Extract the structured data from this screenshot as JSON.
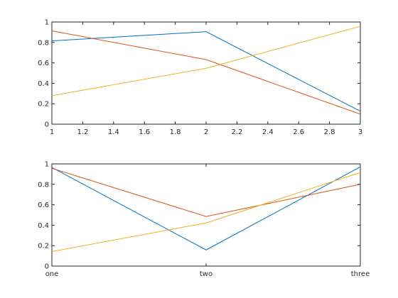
{
  "chart_data": [
    {
      "type": "line",
      "x": [
        1,
        2,
        3
      ],
      "xlim": [
        1,
        3
      ],
      "ylim": [
        0,
        1
      ],
      "x_ticks": [
        "1",
        "1.2",
        "1.4",
        "1.6",
        "1.8",
        "2",
        "2.2",
        "2.4",
        "2.6",
        "2.8",
        "3"
      ],
      "y_ticks": [
        "0",
        "0.2",
        "0.4",
        "0.6",
        "0.8",
        "1"
      ],
      "grid": false,
      "series": [
        {
          "color": "#0072bd",
          "values": [
            0.815,
            0.905,
            0.127
          ]
        },
        {
          "color": "#d95319",
          "values": [
            0.913,
            0.632,
            0.098
          ]
        },
        {
          "color": "#edb120",
          "values": [
            0.279,
            0.547,
            0.958
          ]
        }
      ]
    },
    {
      "type": "line",
      "categories": [
        "one",
        "two",
        "three"
      ],
      "ylim": [
        0,
        1
      ],
      "y_ticks": [
        "0",
        "0.2",
        "0.4",
        "0.6",
        "0.8",
        "1"
      ],
      "grid": false,
      "series": [
        {
          "color": "#0072bd",
          "values": [
            0.965,
            0.158,
            0.971
          ]
        },
        {
          "color": "#d95319",
          "values": [
            0.957,
            0.485,
            0.8
          ]
        },
        {
          "color": "#edb120",
          "values": [
            0.142,
            0.422,
            0.916
          ]
        }
      ]
    }
  ]
}
